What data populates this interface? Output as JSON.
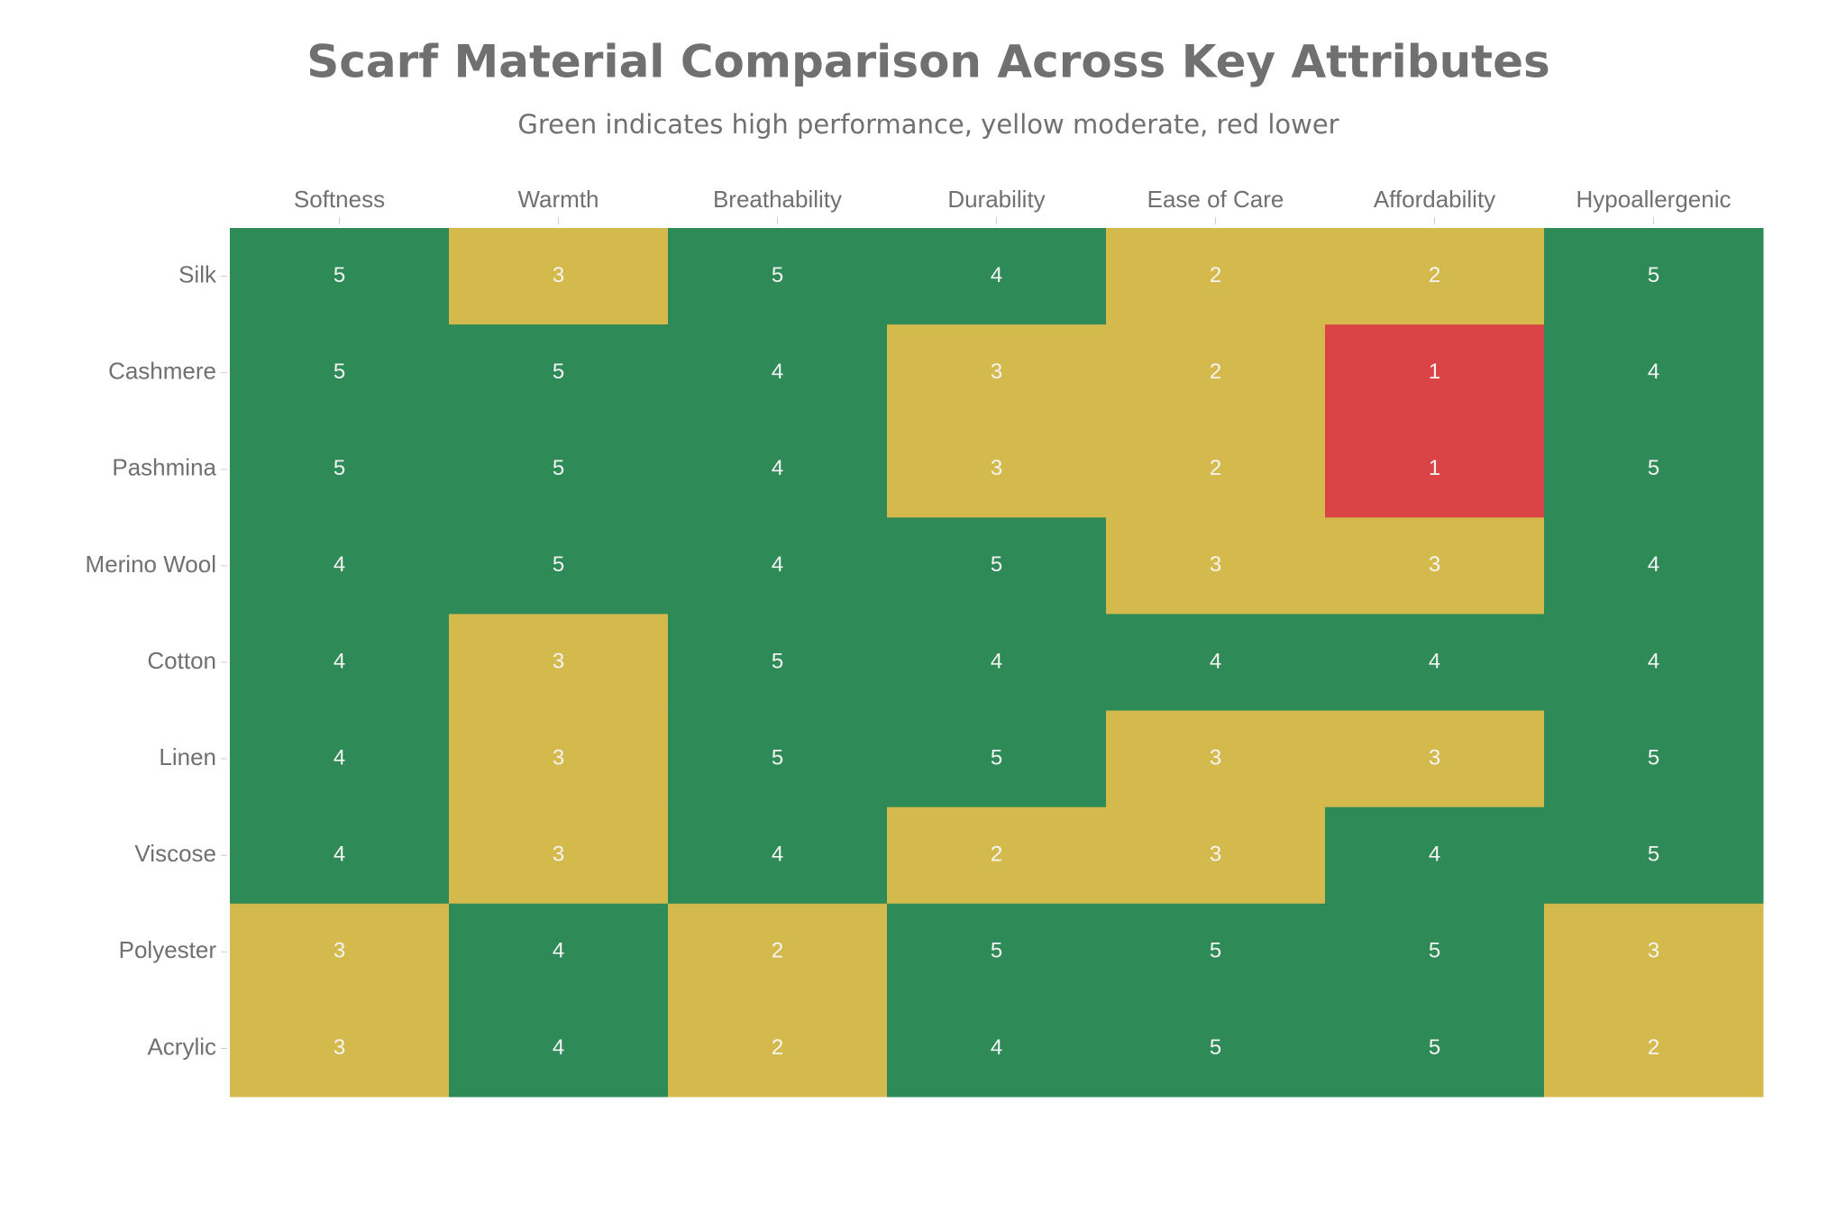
{
  "chart_data": {
    "type": "heatmap",
    "title": "Scarf Material Comparison Across Key Attributes",
    "subtitle": "Green indicates high performance, yellow moderate, red lower",
    "columns": [
      "Softness",
      "Warmth",
      "Breathability",
      "Durability",
      "Ease of Care",
      "Affordability",
      "Hypoallergenic"
    ],
    "rows": [
      "Silk",
      "Cashmere",
      "Pashmina",
      "Merino Wool",
      "Cotton",
      "Linen",
      "Viscose",
      "Polyester",
      "Acrylic"
    ],
    "values": [
      [
        5,
        3,
        5,
        4,
        2,
        2,
        5
      ],
      [
        5,
        5,
        4,
        3,
        2,
        1,
        4
      ],
      [
        5,
        5,
        4,
        3,
        2,
        1,
        5
      ],
      [
        4,
        5,
        4,
        5,
        3,
        3,
        4
      ],
      [
        4,
        3,
        5,
        4,
        4,
        4,
        4
      ],
      [
        4,
        3,
        5,
        5,
        3,
        3,
        5
      ],
      [
        4,
        3,
        4,
        2,
        3,
        4,
        5
      ],
      [
        3,
        4,
        2,
        5,
        5,
        5,
        3
      ],
      [
        3,
        4,
        2,
        4,
        5,
        5,
        2
      ]
    ],
    "colors": [
      "#db4446",
      "#d4ba4c",
      "#d4ba4c",
      "#2e8a57",
      "#2e8a57"
    ]
  }
}
